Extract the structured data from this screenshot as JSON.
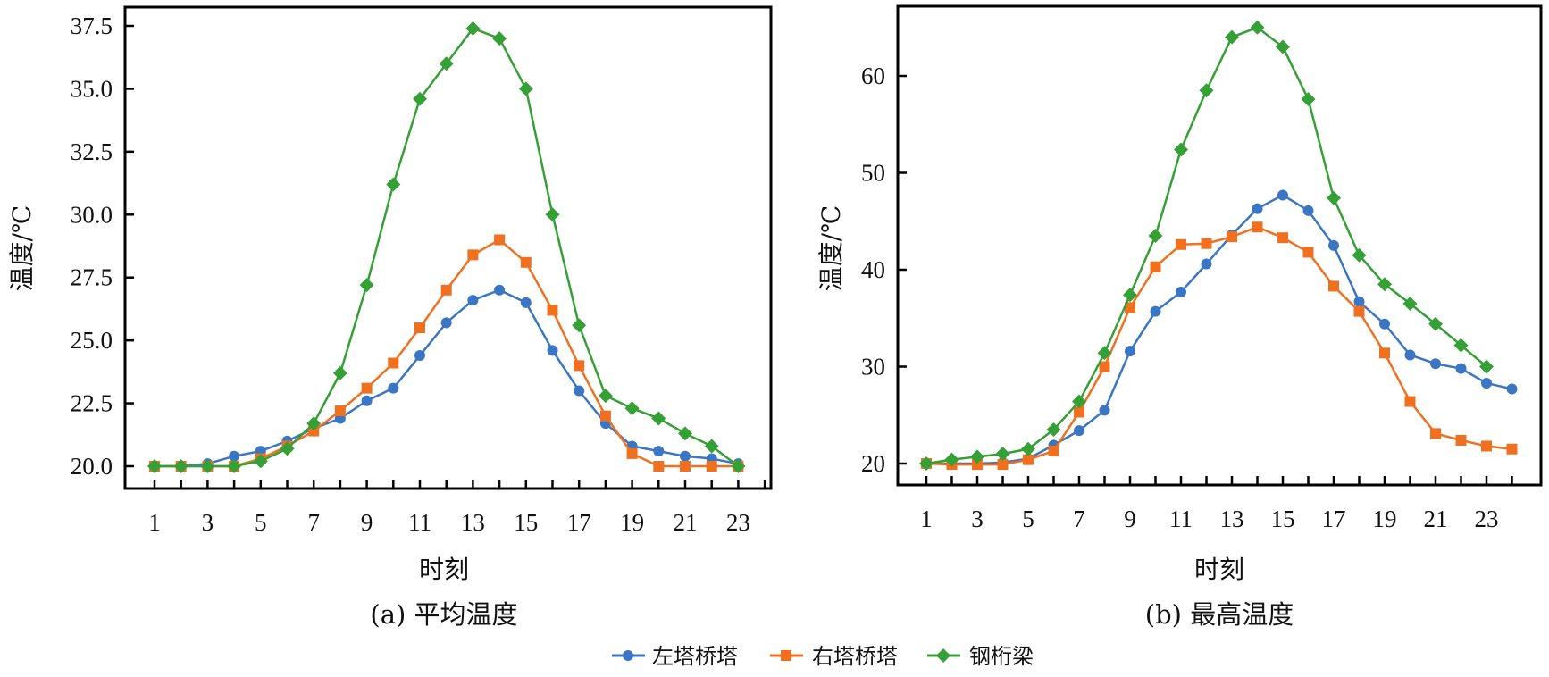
{
  "legend": [
    {
      "name": "左塔桥塔",
      "color": "#3a76c4",
      "marker": "circle"
    },
    {
      "name": "右塔桥塔",
      "color": "#f07020",
      "marker": "square"
    },
    {
      "name": "钢桁梁",
      "color": "#35a035",
      "marker": "diamond"
    }
  ],
  "chart_data": [
    {
      "type": "line",
      "caption": "(a) 平均温度",
      "xlabel": "时刻",
      "ylabel": "温度/℃",
      "xlim": [
        1,
        23
      ],
      "ylim": [
        20.0,
        37.5
      ],
      "x_ticks": [
        1,
        3,
        5,
        7,
        9,
        11,
        13,
        15,
        17,
        19,
        21,
        23
      ],
      "y_ticks": [
        "20.0",
        "22.5",
        "25.0",
        "27.5",
        "30.0",
        "32.5",
        "35.0",
        "37.5"
      ],
      "y_tick_values": [
        20.0,
        22.5,
        25.0,
        27.5,
        30.0,
        32.5,
        35.0,
        37.5
      ],
      "grid": false,
      "series": [
        {
          "name": "左塔桥塔",
          "x": [
            1,
            2,
            3,
            4,
            5,
            6,
            7,
            8,
            9,
            10,
            11,
            12,
            13,
            14,
            15,
            16,
            17,
            18,
            19,
            20,
            21,
            22,
            23
          ],
          "values": [
            20.0,
            20.0,
            20.1,
            20.4,
            20.6,
            21.0,
            21.5,
            21.9,
            22.6,
            23.1,
            24.4,
            25.7,
            26.6,
            27.0,
            26.5,
            24.6,
            23.0,
            21.7,
            20.8,
            20.6,
            20.4,
            20.3,
            20.1
          ]
        },
        {
          "name": "右塔桥塔",
          "x": [
            1,
            2,
            3,
            4,
            5,
            6,
            7,
            8,
            9,
            10,
            11,
            12,
            13,
            14,
            15,
            16,
            17,
            18,
            19,
            20,
            21,
            22,
            23
          ],
          "values": [
            20.0,
            20.0,
            20.0,
            20.0,
            20.3,
            20.8,
            21.4,
            22.2,
            23.1,
            24.1,
            25.5,
            27.0,
            28.4,
            29.0,
            28.1,
            26.2,
            24.0,
            22.0,
            20.5,
            20.0,
            20.0,
            20.0,
            20.0
          ]
        },
        {
          "name": "钢桁梁",
          "x": [
            1,
            2,
            3,
            4,
            5,
            6,
            7,
            8,
            9,
            10,
            11,
            12,
            13,
            14,
            15,
            16,
            17,
            18,
            19,
            20,
            21,
            22,
            23
          ],
          "values": [
            20.0,
            20.0,
            20.0,
            20.0,
            20.2,
            20.7,
            21.7,
            23.7,
            27.2,
            31.2,
            34.6,
            36.0,
            37.4,
            37.0,
            35.0,
            30.0,
            25.6,
            22.8,
            22.3,
            21.9,
            21.3,
            20.8,
            20.0
          ]
        }
      ]
    },
    {
      "type": "line",
      "caption": "(b) 最高温度",
      "xlabel": "时刻",
      "ylabel": "温度/℃",
      "xlim": [
        1,
        24
      ],
      "ylim": [
        18,
        67
      ],
      "x_ticks": [
        1,
        3,
        5,
        7,
        9,
        11,
        13,
        15,
        17,
        19,
        21,
        23
      ],
      "y_ticks": [
        "20",
        "30",
        "40",
        "50",
        "60"
      ],
      "y_tick_values": [
        20,
        30,
        40,
        50,
        60
      ],
      "grid": false,
      "series": [
        {
          "name": "左塔桥塔",
          "x": [
            1,
            2,
            3,
            4,
            5,
            6,
            7,
            8,
            9,
            10,
            11,
            12,
            13,
            14,
            15,
            16,
            17,
            18,
            19,
            20,
            21,
            22,
            23,
            24
          ],
          "values": [
            20.0,
            20.0,
            20.0,
            20.1,
            20.5,
            21.9,
            23.4,
            25.5,
            31.6,
            35.7,
            37.7,
            40.6,
            43.6,
            46.3,
            47.7,
            46.1,
            42.5,
            36.7,
            34.4,
            31.2,
            30.3,
            29.8,
            28.3,
            27.7
          ]
        },
        {
          "name": "右塔桥塔",
          "x": [
            1,
            2,
            3,
            4,
            5,
            6,
            7,
            8,
            9,
            10,
            11,
            12,
            13,
            14,
            15,
            16,
            17,
            18,
            19,
            20,
            21,
            22,
            23,
            24
          ],
          "values": [
            20.0,
            19.9,
            19.9,
            19.9,
            20.4,
            21.3,
            25.3,
            30.0,
            36.1,
            40.3,
            42.6,
            42.7,
            43.4,
            44.4,
            43.3,
            41.8,
            38.3,
            35.7,
            31.4,
            26.4,
            23.1,
            22.4,
            21.8,
            21.5
          ]
        },
        {
          "name": "钢桁梁",
          "x": [
            1,
            2,
            3,
            4,
            5,
            6,
            7,
            8,
            9,
            10,
            11,
            12,
            13,
            14,
            15,
            16,
            17,
            18,
            19,
            20,
            21,
            22,
            23
          ],
          "values": [
            20.0,
            20.4,
            20.7,
            21.0,
            21.5,
            23.5,
            26.4,
            31.4,
            37.4,
            43.5,
            52.4,
            58.5,
            64.0,
            65.0,
            63.0,
            57.6,
            47.4,
            41.5,
            38.5,
            36.5,
            34.4,
            32.2,
            30.0
          ]
        }
      ]
    }
  ]
}
